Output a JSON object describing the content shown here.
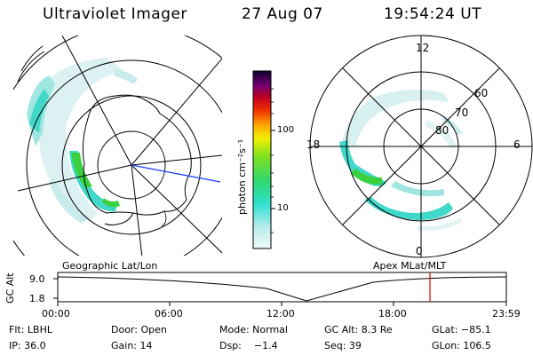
{
  "header": {
    "instrument": "Ultraviolet Imager",
    "date": "27 Aug 07",
    "time": "19:54:24 UT"
  },
  "left_panel": {
    "caption": "Geographic Lat/Lon"
  },
  "right_panel": {
    "caption": "Apex MLat/MLT",
    "mlt_labels": {
      "top": "12",
      "left": "18",
      "right": "6",
      "bottom": "0"
    },
    "lat_labels": [
      "60",
      "70",
      "80"
    ]
  },
  "colorbar": {
    "title": "photon cm⁻²s⁻¹",
    "ticks": [
      "100",
      "10"
    ]
  },
  "timeline": {
    "ylabel": "GC Alt",
    "y_ticks": [
      "9.0",
      "1.8"
    ],
    "x_ticks": [
      "00:00",
      "06:00",
      "12:00",
      "18:00",
      "23:59"
    ],
    "current_time": "19:54",
    "marker_color": "#dd0000"
  },
  "info": {
    "row1": {
      "flt": "Flt: LBHL",
      "door": "Door: Open",
      "mode": "Mode: Normal",
      "gcalt": "GC Alt: 8.3 Re",
      "glat": "GLat: −85.1"
    },
    "row2": {
      "ip": "IP: 36.0",
      "gain": "Gain: 14",
      "dsp": "Dsp:    −1.4",
      "seq": "Seq: 39",
      "glon": "GLon: 106.5"
    }
  },
  "colors": {
    "aurora_bright": "#3ad040",
    "aurora_mid": "#30d8c8",
    "aurora_faint": "#c8ecec",
    "lines": "#000000",
    "meridian": "#1a3cff"
  }
}
